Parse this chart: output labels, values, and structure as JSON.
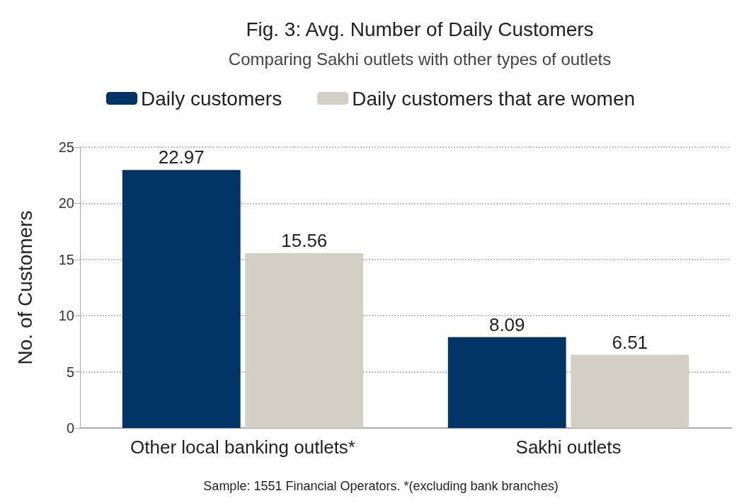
{
  "chart_data": {
    "type": "bar",
    "title": "Fig. 3: Avg. Number of Daily Customers",
    "subtitle": "Comparing Sakhi outlets with other types of outlets",
    "ylabel": "No. of Customers",
    "categories": [
      "Other local banking outlets*",
      "Sakhi outlets"
    ],
    "series": [
      {
        "name": "Daily customers",
        "color": "#003366",
        "values": [
          22.97,
          8.09
        ]
      },
      {
        "name": "Daily customers that are women",
        "color": "#d3cfc4",
        "values": [
          15.56,
          6.51
        ]
      }
    ],
    "ylim": [
      0,
      25
    ],
    "yticks": [
      0,
      5,
      10,
      15,
      20,
      25
    ],
    "grid": "y",
    "legend": "top",
    "data_labels": true,
    "annotations": [
      "Sample: 1551 Financial Operators. *(excluding bank branches)"
    ]
  }
}
